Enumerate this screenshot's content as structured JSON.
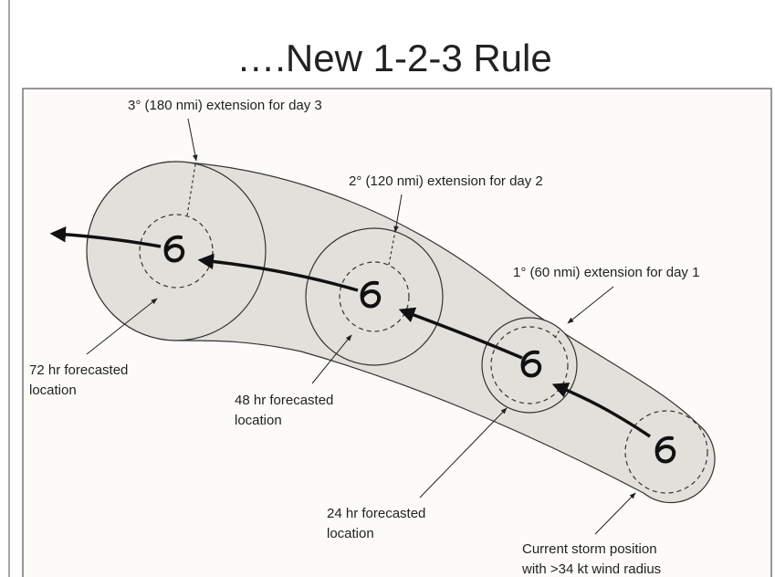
{
  "title": "….New 1-2-3 Rule",
  "labels": [
    {
      "lines": [
        "3° (180 nmi) extension for day 3"
      ]
    },
    {
      "lines": [
        "2° (120 nmi) extension for day 2"
      ]
    },
    {
      "lines": [
        "1° (60 nmi) extension for day 1"
      ]
    },
    {
      "lines": [
        "72 hr forecasted",
        "location"
      ]
    },
    {
      "lines": [
        "48 hr forecasted",
        "location"
      ]
    },
    {
      "lines": [
        "24 hr forecasted",
        "location"
      ]
    },
    {
      "lines": [
        "Current storm position",
        "with >34 kt wind radius"
      ]
    }
  ]
}
